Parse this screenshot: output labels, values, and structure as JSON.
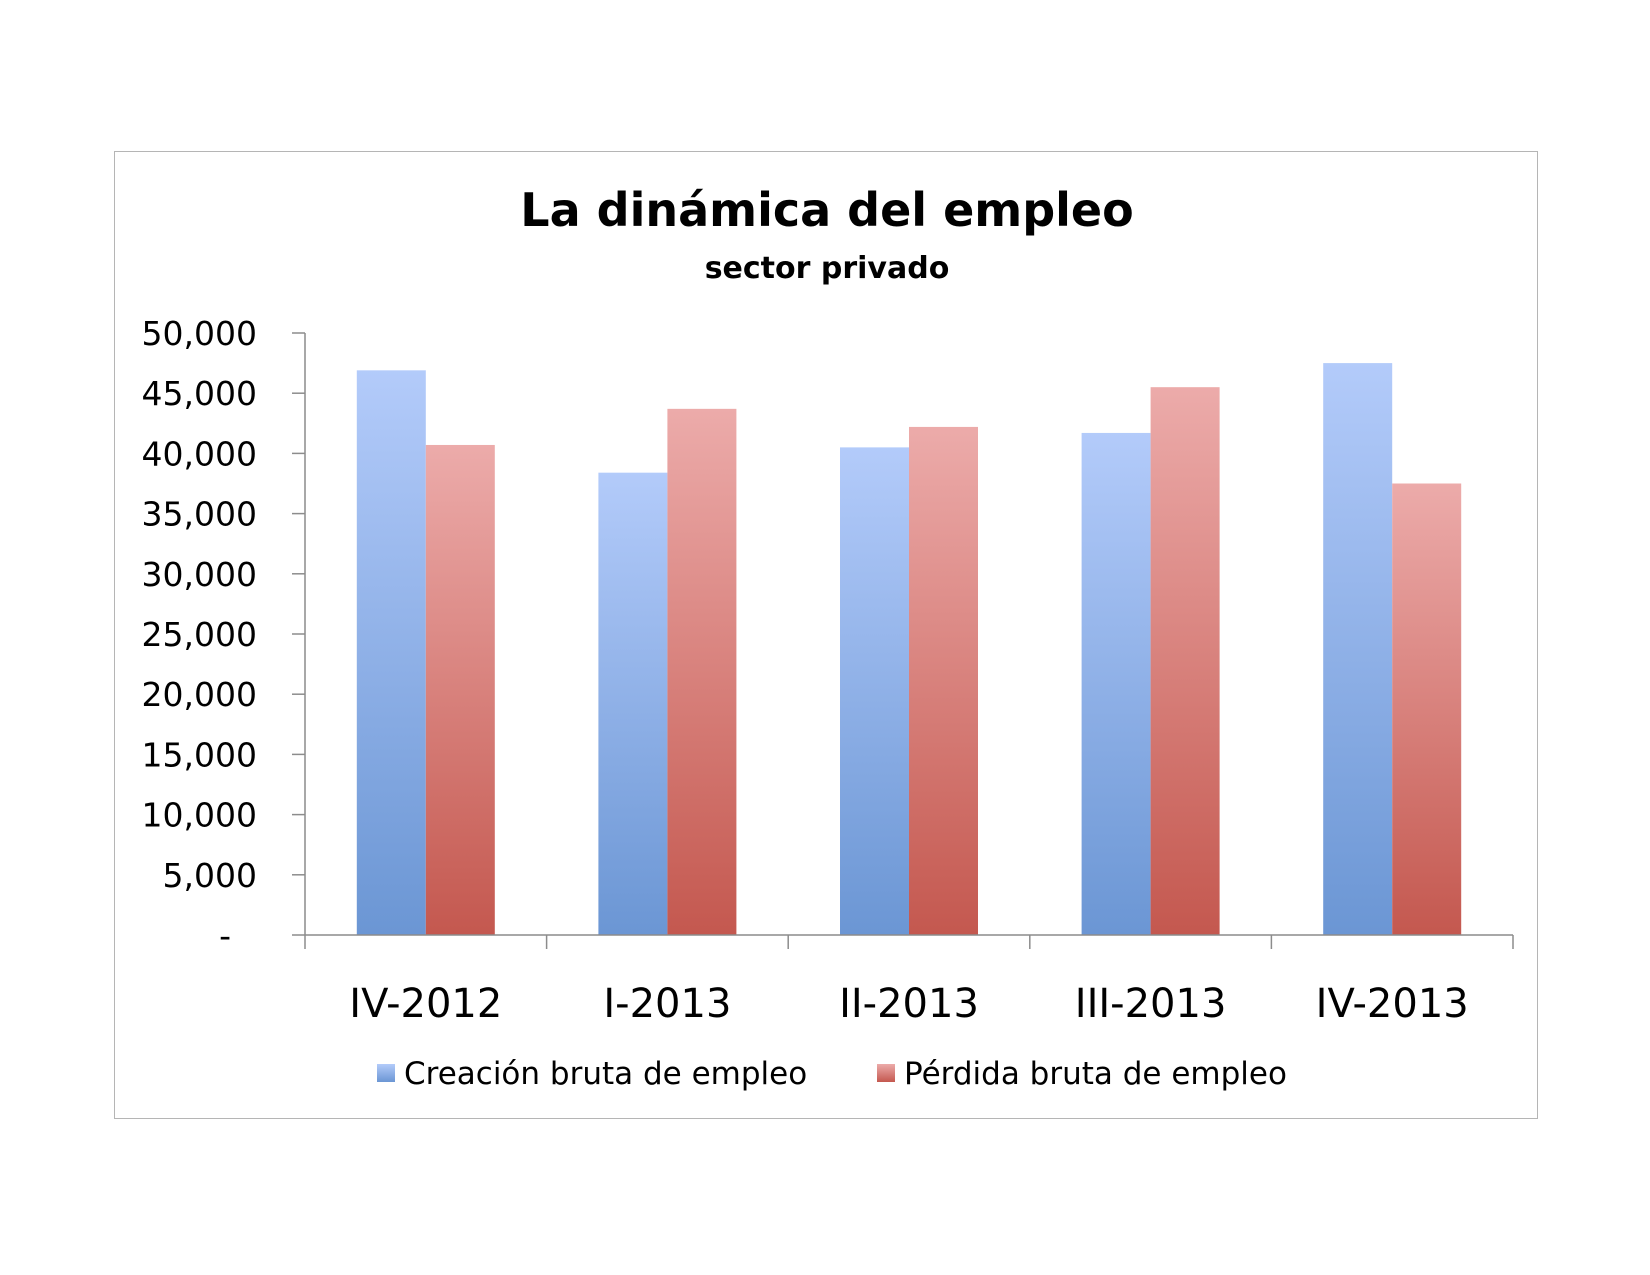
{
  "chart_data": {
    "type": "bar",
    "title": "La dinámica del empleo",
    "subtitle": "sector privado",
    "categories": [
      "IV-2012",
      "I-2013",
      "II-2013",
      "III-2013",
      "IV-2013"
    ],
    "series": [
      {
        "name": "Creación bruta de empleo",
        "values": [
          46900,
          38400,
          40500,
          41700,
          47500
        ],
        "color_top": "#b3cbfa",
        "color_bottom": "#6b96d4"
      },
      {
        "name": "Pérdida bruta de empleo",
        "values": [
          40700,
          43700,
          42200,
          45500,
          37500
        ],
        "color_top": "#ecabaa",
        "color_bottom": "#c4584f"
      }
    ],
    "ylim": [
      0,
      50000
    ],
    "yticks": [
      0,
      5000,
      10000,
      15000,
      20000,
      25000,
      30000,
      35000,
      40000,
      45000,
      50000
    ],
    "ytick_labels": [
      "-",
      "5,000",
      "10,000",
      "15,000",
      "20,000",
      "25,000",
      "30,000",
      "35,000",
      "40,000",
      "45,000",
      "50,000"
    ],
    "xlabel": "",
    "ylabel": "",
    "grid": false,
    "legend_position": "bottom"
  }
}
